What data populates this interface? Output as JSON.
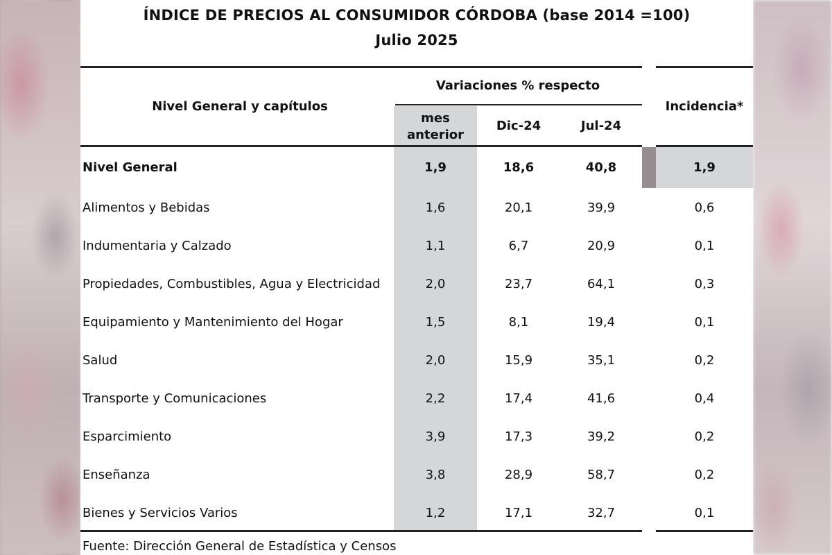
{
  "title_line1": "ÍNDICE DE PRECIOS AL CONSUMIDOR CÓRDOBA (base 2014 =100)",
  "title_line2": "Julio 2025",
  "header": {
    "col_label": "Nivel General y capítulos",
    "group": "Variaciones % respecto",
    "sub": [
      "mes anterior",
      "Dic-24",
      "Jul-24"
    ],
    "incidencia": "Incidencia*"
  },
  "rows": [
    {
      "label": "Nivel General",
      "mes": "1,9",
      "dic": "18,6",
      "jul": "40,8",
      "inc": "1,9"
    },
    {
      "label": "Alimentos y Bebidas",
      "mes": "1,6",
      "dic": "20,1",
      "jul": "39,9",
      "inc": "0,6"
    },
    {
      "label": "Indumentaria y Calzado",
      "mes": "1,1",
      "dic": "6,7",
      "jul": "20,9",
      "inc": "0,1"
    },
    {
      "label": "Propiedades, Combustibles, Agua y Electricidad",
      "mes": "2,0",
      "dic": "23,7",
      "jul": "64,1",
      "inc": "0,3"
    },
    {
      "label": "Equipamiento y Mantenimiento del Hogar",
      "mes": "1,5",
      "dic": "8,1",
      "jul": "19,4",
      "inc": "0,1"
    },
    {
      "label": "Salud",
      "mes": "2,0",
      "dic": "15,9",
      "jul": "35,1",
      "inc": "0,2"
    },
    {
      "label": "Transporte y Comunicaciones",
      "mes": "2,2",
      "dic": "17,4",
      "jul": "41,6",
      "inc": "0,4"
    },
    {
      "label": "Esparcimiento",
      "mes": "3,9",
      "dic": "17,3",
      "jul": "39,2",
      "inc": "0,2"
    },
    {
      "label": "Enseñanza",
      "mes": "3,8",
      "dic": "28,9",
      "jul": "58,7",
      "inc": "0,2"
    },
    {
      "label": "Bienes y Servicios Varios",
      "mes": "1,2",
      "dic": "17,1",
      "jul": "32,7",
      "inc": "0,1"
    }
  ],
  "source": "Fuente: Dirección General de Estadística y Censos"
}
